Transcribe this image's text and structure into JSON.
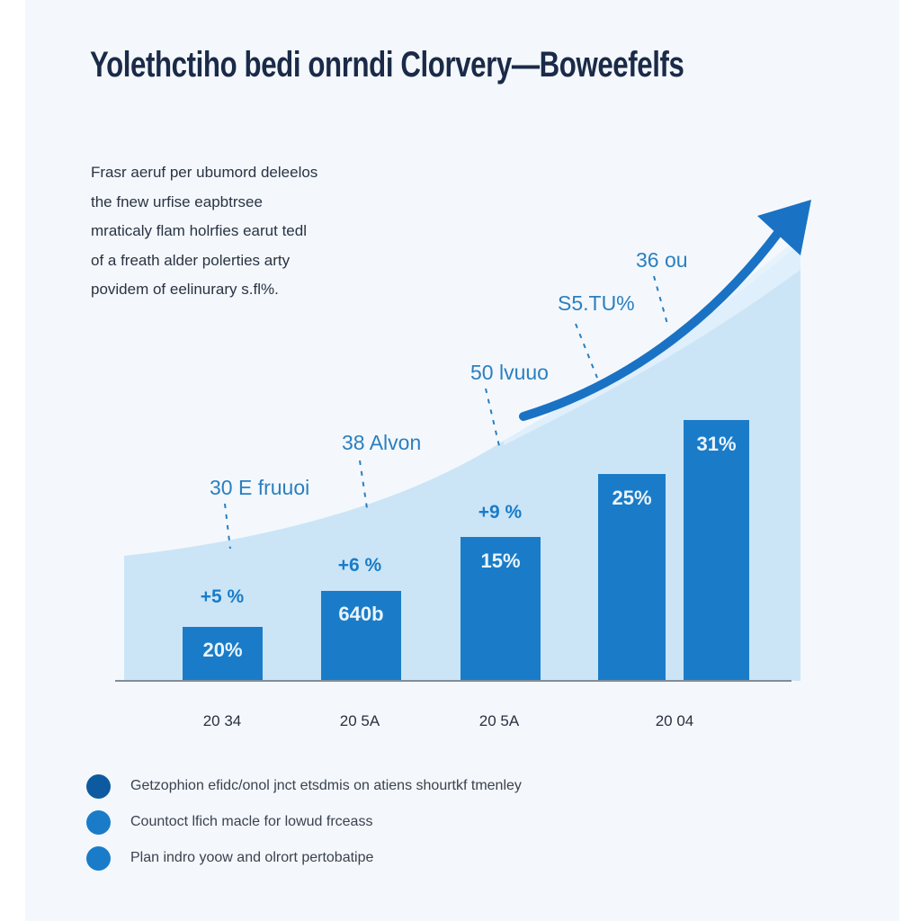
{
  "title": "Yolethctiho bedi onrndi Clorvery—Boweefelfs",
  "description": [
    "Frasr aeruf per ubumord deleelos",
    "the fnew urfise eapbtrsee",
    "mraticaly flam holrfies earut tedl",
    "of a freath alder polerties arty",
    "povidem of eelinurary s.fl%."
  ],
  "colors": {
    "bar": "#1a7cc8",
    "area": "#c3e2f6",
    "arrow": "#1a72c4",
    "annotation": "#2a7fc0",
    "axis": "#7f8c99",
    "legend_dark": "#0d5aa0",
    "legend": "#1a7cc8"
  },
  "chart_data": {
    "type": "bar",
    "title": "Yolethctiho bedi onrndi Clorvery—Boweefelfs",
    "categories": [
      "20 34",
      "20 5A",
      "20 5A",
      "",
      "20 04"
    ],
    "values": [
      6,
      10,
      16,
      23,
      29
    ],
    "bar_labels": [
      "20%",
      "640b",
      "15%",
      "25%",
      "31%"
    ],
    "delta_labels": [
      "+5 %",
      "+6 %",
      "+9 %"
    ],
    "annotations": [
      "30 E fruuoi",
      "38 Alvon",
      "50 lvuuo",
      "S5.TU%",
      "36 ou"
    ],
    "trend": "rising area with upward arrow",
    "grid": false,
    "legend": "bottom-left"
  },
  "legend": [
    {
      "label": "Getzophion efidc/onol jnct etsdmis on atiens shourtkf tmenley",
      "color": "#0d5aa0"
    },
    {
      "label": "Countoct lfich macle for lowud frceass",
      "color": "#1a7cc8"
    },
    {
      "label": "Plan indro yoow and olrort pertobatipe",
      "color": "#1a7cc8"
    }
  ]
}
